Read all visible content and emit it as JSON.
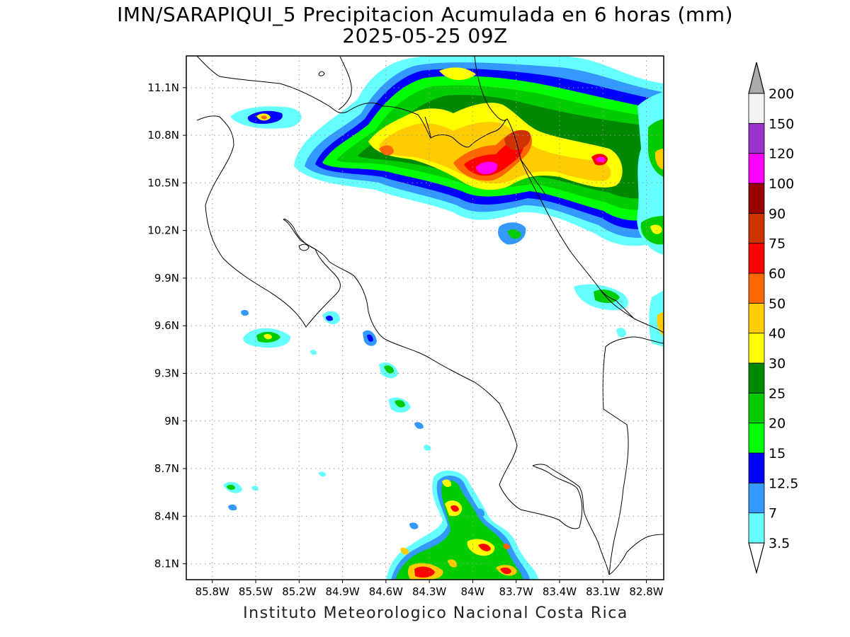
{
  "title": {
    "line1": "IMN/SARAPIQUI_5 Precipitacion Acumulada en 6 horas (mm)",
    "line2": "2025-05-25 09Z"
  },
  "footer": "Instituto Meteorologico Nacional Costa Rica",
  "map": {
    "lon_range": [
      -85.98,
      -82.68
    ],
    "lat_range": [
      8.0,
      11.3
    ],
    "lon_ticks": [
      {
        "value": -85.8,
        "label": "85.8W"
      },
      {
        "value": -85.5,
        "label": "85.5W"
      },
      {
        "value": -85.2,
        "label": "85.2W"
      },
      {
        "value": -84.9,
        "label": "84.9W"
      },
      {
        "value": -84.6,
        "label": "84.6W"
      },
      {
        "value": -84.3,
        "label": "84.3W"
      },
      {
        "value": -84.0,
        "label": "84W"
      },
      {
        "value": -83.7,
        "label": "83.7W"
      },
      {
        "value": -83.4,
        "label": "83.4W"
      },
      {
        "value": -83.1,
        "label": "83.1W"
      },
      {
        "value": -82.8,
        "label": "82.8W"
      }
    ],
    "lat_ticks": [
      {
        "value": 11.1,
        "label": "11.1N"
      },
      {
        "value": 10.8,
        "label": "10.8N"
      },
      {
        "value": 10.5,
        "label": "10.5N"
      },
      {
        "value": 10.2,
        "label": "10.2N"
      },
      {
        "value": 9.9,
        "label": "9.9N"
      },
      {
        "value": 9.6,
        "label": "9.6N"
      },
      {
        "value": 9.3,
        "label": "9.3N"
      },
      {
        "value": 9.0,
        "label": "9N"
      },
      {
        "value": 8.7,
        "label": "8.7N"
      },
      {
        "value": 8.4,
        "label": "8.4N"
      },
      {
        "value": 8.1,
        "label": "8.1N"
      }
    ],
    "grid": true
  },
  "legend": {
    "levels": [
      {
        "label": "3.5",
        "color": "#66ffff"
      },
      {
        "label": "7",
        "color": "#3399ff"
      },
      {
        "label": "12.5",
        "color": "#0000ff"
      },
      {
        "label": "15",
        "color": "#00ff00"
      },
      {
        "label": "20",
        "color": "#00cc00"
      },
      {
        "label": "25",
        "color": "#008800"
      },
      {
        "label": "30",
        "color": "#ffff00"
      },
      {
        "label": "40",
        "color": "#ffcc00"
      },
      {
        "label": "50",
        "color": "#ff6600"
      },
      {
        "label": "60",
        "color": "#ff0000"
      },
      {
        "label": "75",
        "color": "#cc3300"
      },
      {
        "label": "90",
        "color": "#990000"
      },
      {
        "label": "100",
        "color": "#ff00ff"
      },
      {
        "label": "120",
        "color": "#9933cc"
      },
      {
        "label": "150",
        "color": "#f2f2f2"
      },
      {
        "label": "200",
        "color": "#aaaaaa"
      }
    ]
  }
}
